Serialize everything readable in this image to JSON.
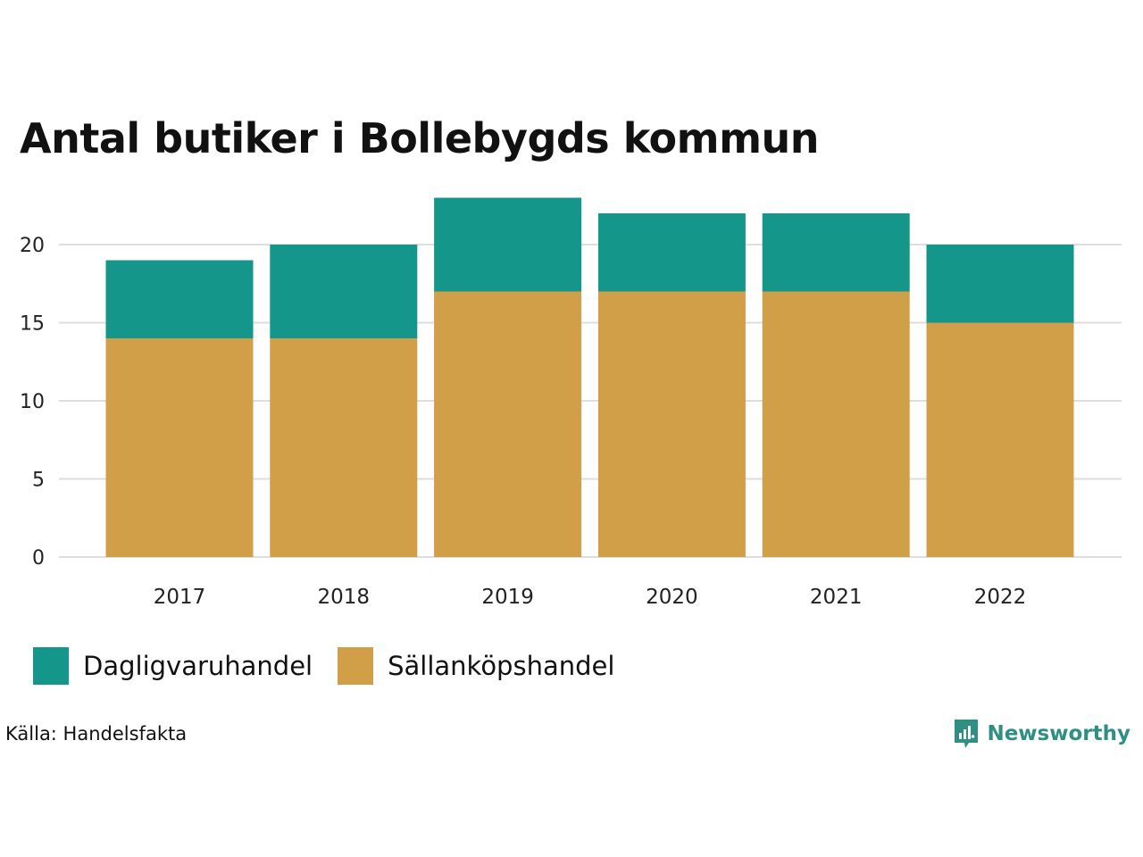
{
  "colors": {
    "dagligvaruhandel": "#14968a",
    "sallankopshandel": "#d09f48",
    "grid": "#dedede",
    "brand": "#2f8f83"
  },
  "chart_data": {
    "type": "bar",
    "stacked": true,
    "title": "Antal butiker i Bollebygds kommun",
    "xlabel": "",
    "ylabel": "",
    "ylim": [
      0,
      23
    ],
    "yticks": [
      "0",
      "5",
      "10",
      "15",
      "20"
    ],
    "categories": [
      "2017",
      "2018",
      "2019",
      "2020",
      "2021",
      "2022"
    ],
    "series": [
      {
        "name": "Sällanköpshandel",
        "values": [
          14,
          14,
          17,
          17,
          17,
          15
        ]
      },
      {
        "name": "Dagligvaruhandel",
        "values": [
          5,
          6,
          6,
          5,
          5,
          5
        ]
      }
    ],
    "legend": [
      "Dagligvaruhandel",
      "Sällanköpshandel"
    ],
    "legend_position": "bottom-left",
    "grid": true
  },
  "footer": {
    "source": "Källa: Handelsfakta",
    "brand": "Newsworthy",
    "brand_icon": "newsworthy-logo-icon"
  }
}
